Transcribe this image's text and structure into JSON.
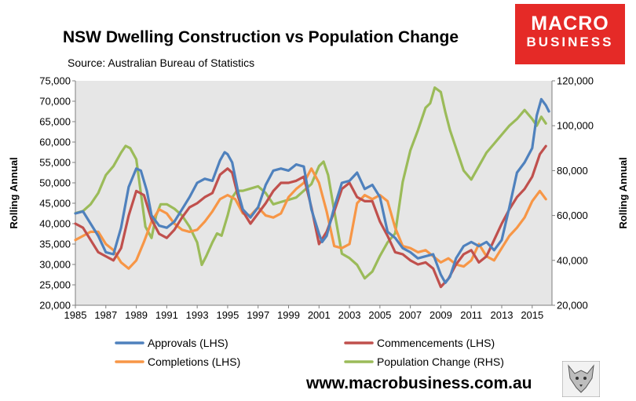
{
  "header": {
    "title": "NSW Dwelling Construction vs Population Change",
    "source": "Source: Australian Bureau of Statistics"
  },
  "logo": {
    "line1": "MACRO",
    "line2": "BUSINESS"
  },
  "footer": {
    "website": "www.macrobusiness.com.au"
  },
  "chart_data": {
    "type": "line",
    "title": "NSW Dwelling Construction vs Population Change",
    "xlabel": "",
    "ylabel_left": "Rolling Annual",
    "ylabel_right": "Rolling Annual",
    "xlim": [
      1985,
      2016.3
    ],
    "ylim_left": [
      20000,
      75000
    ],
    "ylim_right": [
      20000,
      120000
    ],
    "x_ticks": [
      "1985",
      "1987",
      "1989",
      "1991",
      "1993",
      "1995",
      "1997",
      "1999",
      "2001",
      "2003",
      "2005",
      "2007",
      "2009",
      "2011",
      "2013",
      "2015"
    ],
    "y_ticks_left": [
      "20,000",
      "25,000",
      "30,000",
      "35,000",
      "40,000",
      "45,000",
      "50,000",
      "55,000",
      "60,000",
      "65,000",
      "70,000",
      "75,000"
    ],
    "y_ticks_right": [
      "20,000",
      "40,000",
      "60,000",
      "80,000",
      "100,000",
      "120,000"
    ],
    "grid": false,
    "colors": {
      "plot_bg": "#e6e6e6",
      "approvals": "#4f81bd",
      "commencements": "#c0504d",
      "completions": "#f79646",
      "population": "#9bbb59"
    },
    "legend": [
      "Approvals (LHS)",
      "Commencements (LHS)",
      "Completions (LHS)",
      "Population Change (RHS)"
    ],
    "series": [
      {
        "name": "Approvals (LHS)",
        "axis": "left",
        "x": [
          1985,
          1985.5,
          1986,
          1986.5,
          1987,
          1987.5,
          1988,
          1988.5,
          1989,
          1989.3,
          1989.7,
          1990,
          1990.5,
          1991,
          1991.5,
          1992,
          1992.5,
          1993,
          1993.5,
          1994,
          1994.5,
          1994.8,
          1995,
          1995.3,
          1995.7,
          1996,
          1996.5,
          1997,
          1997.5,
          1998,
          1998.5,
          1999,
          1999.5,
          2000,
          2000.5,
          2001,
          2001.2,
          2001.5,
          2002,
          2002.5,
          2003,
          2003.5,
          2004,
          2004.5,
          2005,
          2005.5,
          2006,
          2006.5,
          2007,
          2007.5,
          2008,
          2008.5,
          2009,
          2009.3,
          2009.6,
          2010,
          2010.5,
          2011,
          2011.5,
          2012,
          2012.5,
          2013,
          2013.5,
          2014,
          2014.5,
          2015,
          2015.3,
          2015.6,
          2015.9,
          2016.1
        ],
        "values": [
          42500,
          43000,
          40000,
          37000,
          33000,
          32500,
          39000,
          49000,
          53500,
          53000,
          48000,
          42000,
          39500,
          39000,
          40500,
          43500,
          46500,
          50000,
          51000,
          50500,
          55500,
          57500,
          57000,
          55000,
          47500,
          43500,
          41500,
          44000,
          49500,
          53000,
          53500,
          53000,
          54500,
          54000,
          43500,
          37500,
          35500,
          37000,
          44000,
          50000,
          50500,
          52500,
          48500,
          49500,
          46500,
          38000,
          36500,
          34000,
          33000,
          31500,
          32000,
          32500,
          27500,
          25500,
          27000,
          31500,
          34500,
          35500,
          34500,
          35500,
          33500,
          36000,
          44000,
          52500,
          55000,
          58500,
          66500,
          70500,
          69000,
          67500
        ]
      },
      {
        "name": "Commencements (LHS)",
        "axis": "left",
        "x": [
          1985,
          1985.5,
          1986,
          1986.5,
          1987,
          1987.5,
          1988,
          1988.5,
          1989,
          1989.5,
          1990,
          1990.5,
          1991,
          1991.5,
          1992,
          1992.5,
          1993,
          1993.5,
          1994,
          1994.5,
          1995,
          1995.3,
          1995.7,
          1996,
          1996.5,
          1997,
          1997.5,
          1998,
          1998.5,
          1999,
          1999.5,
          2000,
          2000.5,
          2001,
          2001.5,
          2002,
          2002.5,
          2003,
          2003.5,
          2004,
          2004.5,
          2005,
          2005.5,
          2006,
          2006.5,
          2007,
          2007.5,
          2008,
          2008.5,
          2009,
          2009.5,
          2010,
          2010.5,
          2011,
          2011.5,
          2012,
          2012.5,
          2013,
          2013.5,
          2014,
          2014.5,
          2015,
          2015.5,
          2015.9
        ],
        "values": [
          40000,
          39000,
          36000,
          33000,
          32000,
          31000,
          34000,
          42000,
          48000,
          47000,
          41000,
          37500,
          36500,
          38500,
          41500,
          44000,
          45000,
          46500,
          47500,
          52000,
          53500,
          52500,
          46500,
          43000,
          40000,
          42500,
          45000,
          48000,
          50000,
          50000,
          50500,
          51500,
          44000,
          35000,
          38000,
          43000,
          48500,
          50000,
          46500,
          45500,
          45500,
          40500,
          37000,
          33000,
          32500,
          31000,
          30000,
          30500,
          29000,
          24500,
          26500,
          30000,
          32500,
          33500,
          30500,
          32000,
          36000,
          40000,
          43500,
          46500,
          48500,
          51500,
          57000,
          59000
        ]
      },
      {
        "name": "Completions (LHS)",
        "axis": "left",
        "x": [
          1985,
          1985.5,
          1986,
          1986.5,
          1987,
          1987.5,
          1988,
          1988.5,
          1989,
          1989.5,
          1990,
          1990.5,
          1991,
          1991.5,
          1992,
          1992.5,
          1993,
          1993.5,
          1994,
          1994.5,
          1995,
          1995.5,
          1996,
          1996.5,
          1997,
          1997.5,
          1998,
          1998.5,
          1999,
          1999.5,
          2000,
          2000.5,
          2001,
          2001.5,
          2002,
          2002.5,
          2003,
          2003.5,
          2004,
          2004.5,
          2005,
          2005.5,
          2006,
          2006.5,
          2007,
          2007.5,
          2008,
          2008.5,
          2009,
          2009.5,
          2010,
          2010.5,
          2011,
          2011.5,
          2012,
          2012.5,
          2013,
          2013.5,
          2014,
          2014.5,
          2015,
          2015.5,
          2015.9
        ],
        "values": [
          36000,
          37000,
          38000,
          38000,
          35000,
          33500,
          30500,
          29000,
          31000,
          35500,
          40500,
          43500,
          42500,
          40000,
          38500,
          38000,
          38500,
          40500,
          43000,
          46000,
          47000,
          46000,
          42500,
          42000,
          44000,
          42000,
          41500,
          42500,
          46500,
          48500,
          50000,
          53500,
          50000,
          43000,
          34500,
          34000,
          35000,
          45000,
          47000,
          46000,
          47000,
          45500,
          39000,
          34500,
          34000,
          33000,
          33500,
          32000,
          30500,
          31500,
          30000,
          29500,
          31000,
          35000,
          32000,
          31000,
          34000,
          37000,
          39000,
          41500,
          45500,
          48000,
          46000
        ]
      },
      {
        "name": "Population Change (RHS)",
        "axis": "right",
        "x": [
          1985,
          1985.5,
          1986,
          1986.5,
          1987,
          1987.5,
          1988,
          1988.3,
          1988.6,
          1989,
          1989.3,
          1989.6,
          1990,
          1990.3,
          1990.6,
          1991,
          1991.5,
          1992,
          1992.5,
          1993,
          1993.3,
          1993.6,
          1994,
          1994.3,
          1994.6,
          1995,
          1995.3,
          1995.6,
          1996,
          1996.5,
          1997,
          1997.5,
          1998,
          1998.5,
          1999,
          1999.5,
          2000,
          2000.5,
          2001,
          2001.3,
          2001.6,
          2002,
          2002.5,
          2003,
          2003.5,
          2004,
          2004.5,
          2005,
          2005.5,
          2006,
          2006.5,
          2007,
          2007.5,
          2008,
          2008.3,
          2008.6,
          2009,
          2009.3,
          2009.6,
          2010,
          2010.5,
          2011,
          2011.5,
          2012,
          2012.5,
          2013,
          2013.5,
          2014,
          2014.5,
          2015,
          2015.3,
          2015.6,
          2015.9
        ],
        "values": [
          61000,
          62000,
          65000,
          70000,
          78000,
          82000,
          88000,
          91000,
          90000,
          85000,
          70000,
          55000,
          50000,
          60000,
          65000,
          65000,
          63000,
          60000,
          55000,
          48000,
          38000,
          42000,
          48000,
          52000,
          51000,
          60000,
          68000,
          71000,
          71000,
          72000,
          73000,
          70000,
          65000,
          66000,
          67000,
          68000,
          71000,
          74000,
          82000,
          84000,
          78000,
          62000,
          43000,
          41000,
          38000,
          32000,
          35000,
          42000,
          48000,
          52000,
          75000,
          89000,
          98000,
          108000,
          110000,
          117000,
          115000,
          106000,
          98000,
          90000,
          80000,
          76000,
          82000,
          88000,
          92000,
          96000,
          100000,
          103000,
          107000,
          103000,
          100000,
          104000,
          101000
        ]
      }
    ]
  }
}
